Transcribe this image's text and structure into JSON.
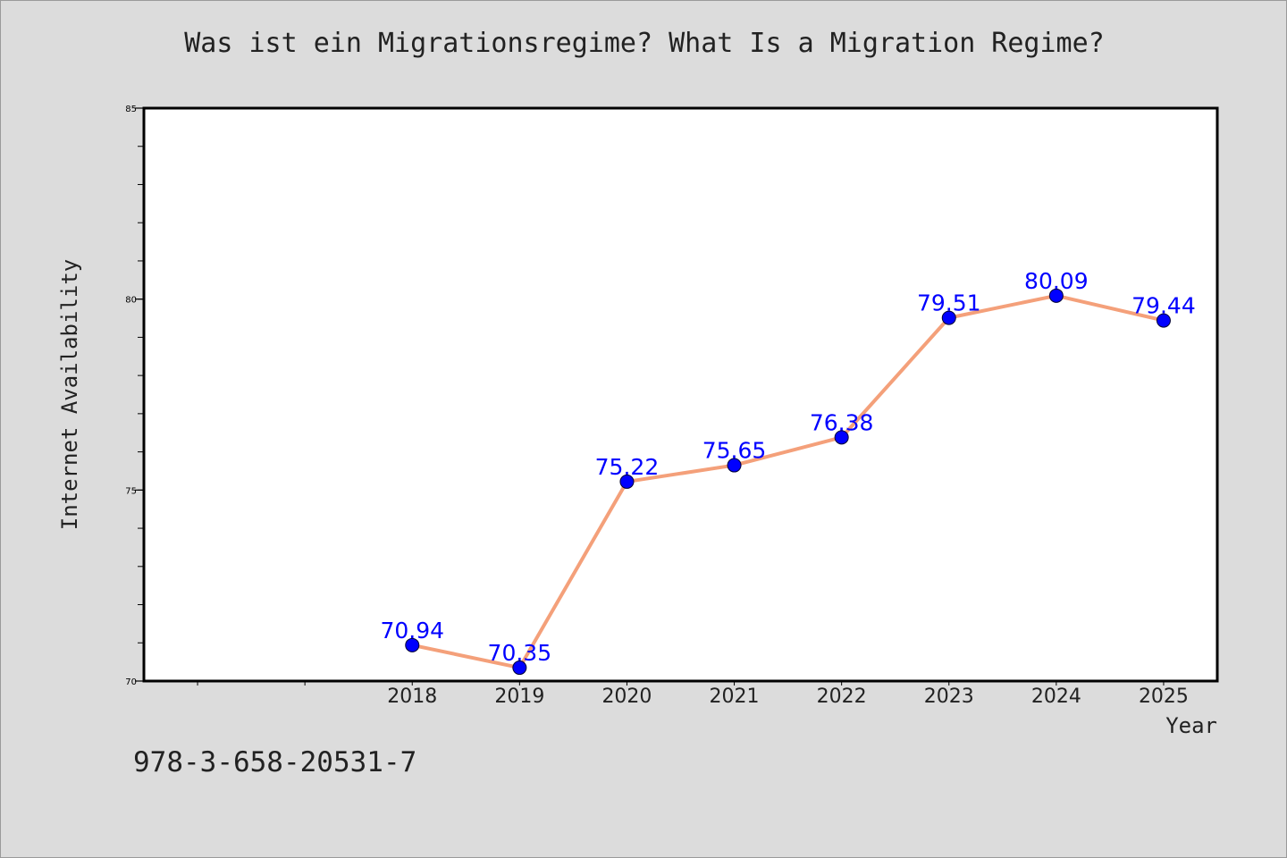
{
  "colors": {
    "background": "#dcdcdc",
    "plot_background": "#ffffff",
    "line": "#f4a07a",
    "marker": "#0000ff",
    "data_label": "#0000ff",
    "text": "#222222"
  },
  "isbn": "978-3-658-20531-7",
  "chart_data": {
    "type": "line",
    "title": "Was ist ein Migrationsregime? What Is a Migration Regime?",
    "xlabel": "Year",
    "ylabel": "Internet Availability",
    "categories": [
      "2018",
      "2019",
      "2020",
      "2021",
      "2022",
      "2023",
      "2024",
      "2025"
    ],
    "x_slots": 10,
    "first_category_slot": 2,
    "series": [
      {
        "values": [
          70.94,
          70.35,
          75.22,
          75.65,
          76.38,
          79.51,
          80.09,
          79.44
        ],
        "data_labels": [
          "70.94",
          "70.35",
          "75.22",
          "75.65",
          "76.38",
          "79.51",
          "80.09",
          "79.44"
        ]
      }
    ],
    "ylim": [
      70,
      85
    ],
    "y_ticks": [
      70,
      75,
      80,
      85
    ],
    "y_minor_step": 1,
    "grid": false,
    "legend": "none"
  }
}
